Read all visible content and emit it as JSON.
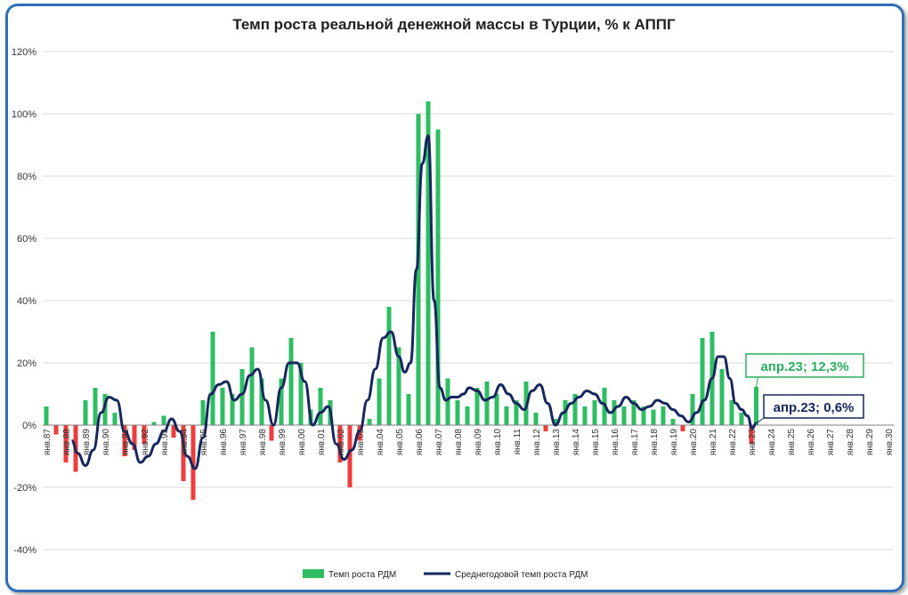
{
  "chart_data": {
    "type": "bar",
    "title": "Темп роста реальной денежной массы в Турции, % к АППГ",
    "y_ticks": [
      "120%",
      "100%",
      "80%",
      "60%",
      "40%",
      "20%",
      "0%",
      "-20%",
      "-40%"
    ],
    "ylim": [
      -40,
      120
    ],
    "x_ticks": [
      "янв.87",
      "янв.88",
      "янв.89",
      "янв.90",
      "янв.91",
      "янв.92",
      "янв.93",
      "янв.94",
      "янв.95",
      "янв.96",
      "янв.97",
      "янв.98",
      "янв.99",
      "янв.00",
      "янв.01",
      "янв.02",
      "янв.03",
      "янв.04",
      "янв.05",
      "янв.06",
      "янв.07",
      "янв.08",
      "янв.09",
      "янв.10",
      "янв.11",
      "янв.12",
      "янв.13",
      "янв.14",
      "янв.15",
      "янв.16",
      "янв.17",
      "янв.18",
      "янв.19",
      "янв.20",
      "янв.21",
      "янв.22",
      "янв.23",
      "янв.24",
      "янв.25",
      "янв.26",
      "янв.27",
      "янв.28",
      "янв.29",
      "янв.30"
    ],
    "grid": true,
    "legend_position": "bottom",
    "series": [
      {
        "name": "Темп роста РДМ",
        "kind": "bar",
        "color_positive": "#2ebd62",
        "color_negative": "#ee3b3b",
        "years": [
          1987,
          1987.5,
          1988,
          1988.5,
          1989,
          1989.5,
          1990,
          1990.5,
          1991,
          1991.5,
          1992,
          1992.5,
          1993,
          1993.5,
          1994,
          1994.5,
          1995,
          1995.5,
          1996,
          1996.5,
          1997,
          1997.5,
          1998,
          1998.5,
          1999,
          1999.5,
          2000,
          2000.5,
          2001,
          2001.5,
          2002,
          2002.5,
          2003,
          2003.5,
          2004,
          2004.5,
          2005,
          2005.5,
          2006,
          2006.5,
          2007,
          2007.5,
          2008,
          2008.5,
          2009,
          2009.5,
          2010,
          2010.5,
          2011,
          2011.5,
          2012,
          2012.5,
          2013,
          2013.5,
          2014,
          2014.5,
          2015,
          2015.5,
          2016,
          2016.5,
          2017,
          2017.5,
          2018,
          2018.5,
          2019,
          2019.5,
          2020,
          2020.5,
          2021,
          2021.5,
          2022,
          2022.5,
          2023,
          2023.25
        ],
        "values": [
          6,
          -3,
          -12,
          -15,
          8,
          12,
          10,
          4,
          -10,
          -8,
          -6,
          1,
          3,
          -4,
          -18,
          -24,
          8,
          30,
          12,
          10,
          18,
          25,
          15,
          -5,
          15,
          28,
          20,
          5,
          12,
          8,
          -12,
          -20,
          -5,
          2,
          15,
          38,
          25,
          10,
          100,
          104,
          95,
          15,
          8,
          6,
          12,
          14,
          10,
          6,
          8,
          14,
          4,
          -2,
          2,
          8,
          10,
          6,
          8,
          12,
          8,
          6,
          8,
          6,
          5,
          6,
          2,
          -2,
          10,
          28,
          30,
          18,
          8,
          4,
          -6,
          12.3
        ]
      },
      {
        "name": "Среднегодовой темп роста РДМ",
        "kind": "line",
        "color": "#16265e",
        "years": [
          1988.3,
          1988.6,
          1989,
          1989.4,
          1989.8,
          1990.2,
          1990.6,
          1991,
          1991.4,
          1991.8,
          1992.2,
          1992.6,
          1993,
          1993.4,
          1993.8,
          1994.2,
          1994.6,
          1995,
          1995.4,
          1995.8,
          1996.2,
          1996.6,
          1997,
          1997.4,
          1997.8,
          1998.2,
          1998.6,
          1999,
          1999.4,
          1999.8,
          2000.2,
          2000.6,
          2001,
          2001.4,
          2001.8,
          2002.2,
          2002.6,
          2003,
          2003.4,
          2003.8,
          2004.2,
          2004.6,
          2005,
          2005.3,
          2005.6,
          2005.9,
          2006.2,
          2006.5,
          2006.8,
          2007.1,
          2007.4,
          2007.7,
          2008,
          2008.3,
          2008.6,
          2009,
          2009.4,
          2009.8,
          2010.2,
          2010.6,
          2011,
          2011.4,
          2011.8,
          2012.2,
          2012.6,
          2013,
          2013.4,
          2013.8,
          2014.2,
          2014.6,
          2015,
          2015.4,
          2015.8,
          2016.2,
          2016.6,
          2017,
          2017.4,
          2017.8,
          2018.2,
          2018.6,
          2019,
          2019.4,
          2019.8,
          2020.2,
          2020.6,
          2021,
          2021.3,
          2021.6,
          2021.9,
          2022.2,
          2022.5,
          2022.8,
          2023.05,
          2023.25
        ],
        "values": [
          -5,
          -9,
          -13,
          -8,
          4,
          9,
          8,
          -2,
          -6,
          -12,
          -10,
          -6,
          -2,
          2,
          -2,
          -10,
          -14,
          -4,
          10,
          13,
          14,
          8,
          10,
          16,
          18,
          8,
          0,
          12,
          20,
          20,
          14,
          0,
          4,
          6,
          -6,
          -11,
          -8,
          -2,
          8,
          18,
          28,
          30,
          22,
          17,
          20,
          50,
          84,
          93,
          40,
          12,
          8,
          9,
          9,
          10,
          12,
          11,
          8,
          9,
          13,
          10,
          7,
          5,
          11,
          13,
          7,
          0,
          4,
          7,
          9,
          11,
          10,
          7,
          4,
          6,
          9,
          7,
          5,
          6,
          8,
          7,
          5,
          3,
          1,
          4,
          8,
          15,
          22,
          22,
          15,
          7,
          5,
          3,
          -1,
          0.6
        ]
      }
    ],
    "annotations": [
      {
        "text": "апр.23; 12,3%",
        "series": "Темп роста РДМ",
        "x": 2023.25,
        "y": 12.3
      },
      {
        "text": "апр.23; 0,6%",
        "series": "Среднегодовой темп роста РДМ",
        "x": 2023.25,
        "y": 0.6
      }
    ]
  }
}
